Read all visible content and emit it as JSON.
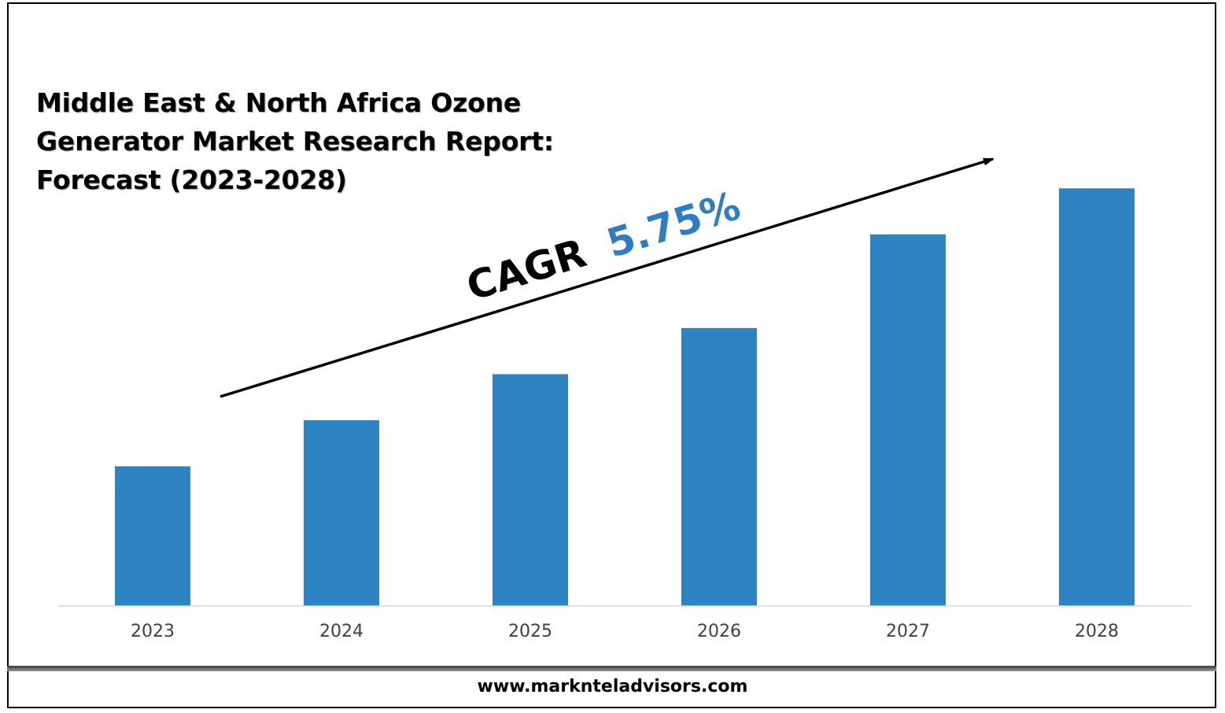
{
  "title_lines": [
    "Middle East & North Africa Ozone",
    "Generator Market Research Report:",
    "Forecast (2023-2028)"
  ],
  "cagr": {
    "label": "CAGR",
    "value": "5.75%"
  },
  "footer": {
    "url": "www.marknteladvisors.com"
  },
  "colors": {
    "bar": "#2E83C3",
    "cagr_value": "#2E7DC2",
    "axis": "#d9d9d9",
    "tick_label": "#404040"
  },
  "chart_data": {
    "type": "bar",
    "categories": [
      "2023",
      "2024",
      "2025",
      "2026",
      "2027",
      "2028"
    ],
    "values": [
      1.0,
      1.33,
      1.66,
      1.99,
      2.66,
      2.99
    ],
    "ylim": [
      0,
      3.2
    ],
    "grid": false,
    "legend": "none",
    "title": "Middle East & North Africa Ozone Generator Market Research Report: Forecast (2023-2028)",
    "xlabel": "",
    "ylabel": ""
  }
}
